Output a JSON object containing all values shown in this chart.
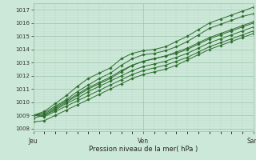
{
  "xlabel": "Pression niveau de la mer( hPa )",
  "bg_color": "#cce8d8",
  "grid_major_color": "#99c4aa",
  "grid_minor_color": "#b8d9c5",
  "line_color": "#2d6e2d",
  "marker_color": "#2d6e2d",
  "yticks_major": [
    1008,
    1009,
    1010,
    1011,
    1012,
    1013,
    1014,
    1015,
    1016,
    1017
  ],
  "ylim": [
    1007.8,
    1017.5
  ],
  "xlim": [
    0,
    48
  ],
  "xtick_positions": [
    0,
    24,
    48
  ],
  "xtick_labels": [
    "Jeu",
    "Ven",
    "Sam"
  ],
  "series": [
    [
      1009.0,
      1009.3,
      1009.9,
      1010.5,
      1011.2,
      1011.8,
      1012.2,
      1012.6,
      1013.3,
      1013.7,
      1013.9,
      1014.0,
      1014.2,
      1014.6,
      1015.0,
      1015.5,
      1016.0,
      1016.3,
      1016.6,
      1016.9,
      1017.2
    ],
    [
      1009.0,
      1009.2,
      1009.7,
      1010.2,
      1010.8,
      1011.3,
      1011.8,
      1012.2,
      1012.8,
      1013.3,
      1013.6,
      1013.7,
      1013.9,
      1014.2,
      1014.6,
      1015.1,
      1015.6,
      1015.9,
      1016.2,
      1016.5,
      1016.7
    ],
    [
      1008.8,
      1009.0,
      1009.5,
      1010.0,
      1010.5,
      1011.0,
      1011.4,
      1011.8,
      1012.3,
      1012.8,
      1013.1,
      1013.3,
      1013.5,
      1013.8,
      1014.1,
      1014.5,
      1014.9,
      1015.2,
      1015.5,
      1015.8,
      1016.1
    ],
    [
      1009.0,
      1009.1,
      1009.6,
      1010.1,
      1010.6,
      1011.1,
      1011.5,
      1011.9,
      1012.4,
      1012.8,
      1013.1,
      1013.3,
      1013.5,
      1013.7,
      1014.0,
      1014.4,
      1014.8,
      1015.1,
      1015.4,
      1015.7,
      1016.0
    ],
    [
      1009.0,
      1009.0,
      1009.4,
      1009.9,
      1010.3,
      1010.8,
      1011.2,
      1011.6,
      1012.0,
      1012.4,
      1012.7,
      1012.9,
      1013.1,
      1013.4,
      1013.7,
      1014.1,
      1014.5,
      1014.8,
      1015.1,
      1015.4,
      1015.7
    ],
    [
      1009.0,
      1008.9,
      1009.3,
      1009.7,
      1010.1,
      1010.5,
      1010.9,
      1011.3,
      1011.7,
      1012.1,
      1012.4,
      1012.6,
      1012.8,
      1013.1,
      1013.4,
      1013.8,
      1014.2,
      1014.5,
      1014.8,
      1015.1,
      1015.4
    ],
    [
      1008.5,
      1008.6,
      1009.0,
      1009.4,
      1009.8,
      1010.2,
      1010.6,
      1011.0,
      1011.4,
      1011.8,
      1012.1,
      1012.3,
      1012.5,
      1012.8,
      1013.2,
      1013.6,
      1014.0,
      1014.3,
      1014.6,
      1014.9,
      1015.2
    ]
  ],
  "series_x": [
    0,
    2.4,
    4.8,
    7.2,
    9.6,
    12,
    14.4,
    16.8,
    19.2,
    21.6,
    24,
    26.4,
    28.8,
    31.2,
    33.6,
    36,
    38.4,
    40.8,
    43.2,
    45.6,
    48
  ]
}
